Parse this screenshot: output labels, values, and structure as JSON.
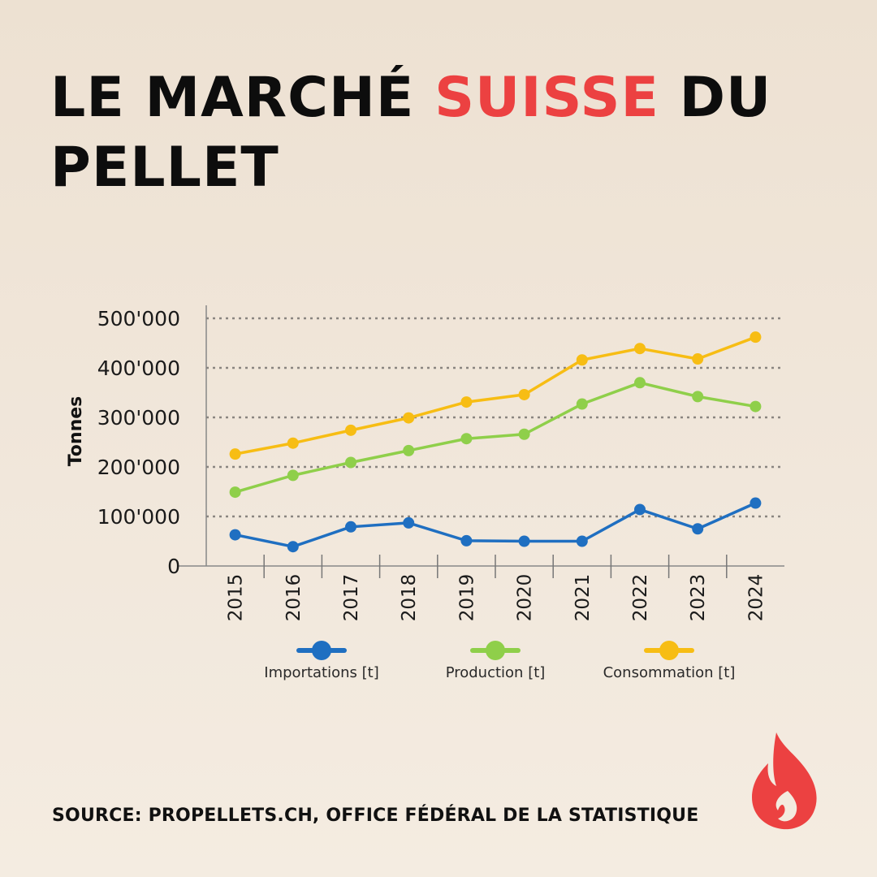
{
  "header": {
    "title_part1": "LE MARCHÉ ",
    "title_accent": "SUISSE",
    "title_part2": " DU PELLET"
  },
  "source": "SOURCE: PROPELLETS.CH, OFFICE FÉDÉRAL DE LA STATISTIQUE",
  "colors": {
    "accent": "#ec4141",
    "importations": "#1f6fc1",
    "production": "#8fcf4a",
    "consommation": "#f7bd14"
  },
  "chart_data": {
    "type": "line",
    "title": "",
    "xlabel": "",
    "ylabel": "Tonnes",
    "categories": [
      "2015",
      "2016",
      "2017",
      "2018",
      "2019",
      "2020",
      "2021",
      "2022",
      "2023",
      "2024"
    ],
    "ylim": [
      0,
      500000
    ],
    "yticks": [
      0,
      100000,
      200000,
      300000,
      400000,
      500000
    ],
    "ytick_labels": [
      "0",
      "100'000",
      "200'000",
      "300'000",
      "400'000",
      "500'000"
    ],
    "grid": "horizontal-dotted",
    "legend_position": "bottom",
    "series": [
      {
        "key": "importations",
        "name": "Importations [t]",
        "color": "#1f6fc1",
        "values": [
          63000,
          39000,
          79000,
          87000,
          51000,
          50000,
          50000,
          114000,
          75000,
          127000
        ]
      },
      {
        "key": "production",
        "name": "Production [t]",
        "color": "#8fcf4a",
        "values": [
          149000,
          183000,
          209000,
          233000,
          257000,
          266000,
          327000,
          370000,
          342000,
          322000
        ]
      },
      {
        "key": "consommation",
        "name": "Consommation [t]",
        "color": "#f7bd14",
        "values": [
          226000,
          248000,
          274000,
          299000,
          331000,
          346000,
          416000,
          439000,
          418000,
          462000
        ]
      }
    ]
  },
  "logo": {
    "icon": "flame-icon"
  }
}
